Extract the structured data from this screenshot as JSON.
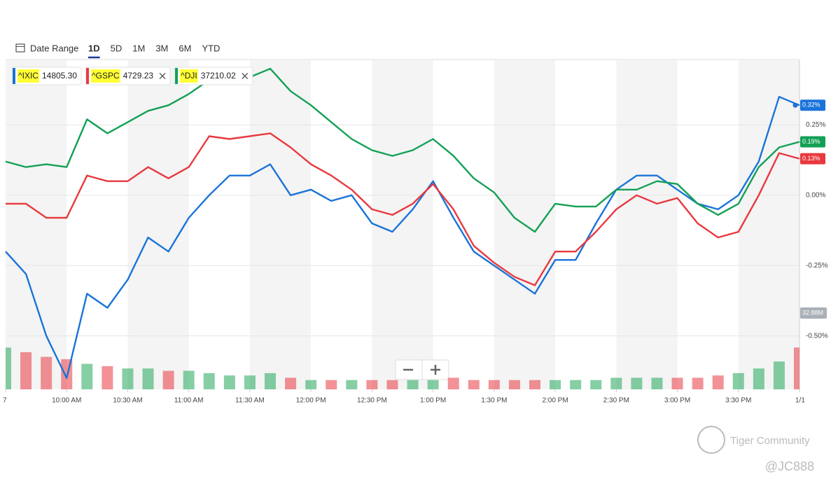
{
  "range_bar": {
    "label": "Date Range",
    "options": [
      "1D",
      "5D",
      "1M",
      "3M",
      "6M",
      "YTD"
    ],
    "active": "1D"
  },
  "watermark": {
    "brand": "Tiger Community",
    "user": "@JC888"
  },
  "chart_data": {
    "type": "line",
    "x": [
      "9:30",
      "9:40",
      "9:50",
      "10:00",
      "10:10",
      "10:20",
      "10:30",
      "10:40",
      "10:50",
      "11:00",
      "11:10",
      "11:20",
      "11:30",
      "11:40",
      "11:50",
      "12:00",
      "12:10",
      "12:20",
      "12:30",
      "12:40",
      "12:50",
      "13:00",
      "13:10",
      "13:20",
      "13:30",
      "13:40",
      "13:50",
      "14:00",
      "14:10",
      "14:20",
      "14:30",
      "14:40",
      "14:50",
      "15:00",
      "15:10",
      "15:20",
      "15:30",
      "15:40",
      "15:50",
      "16:00"
    ],
    "xlim": [
      "9:30",
      "16:00"
    ],
    "xticks": [
      {
        "value": "9:30",
        "label": "7"
      },
      {
        "value": "10:00",
        "label": "10:00 AM"
      },
      {
        "value": "10:30",
        "label": "10:30 AM"
      },
      {
        "value": "11:00",
        "label": "11:00 AM"
      },
      {
        "value": "11:30",
        "label": "11:30 AM"
      },
      {
        "value": "12:00",
        "label": "12:00 PM"
      },
      {
        "value": "12:30",
        "label": "12:30 PM"
      },
      {
        "value": "13:00",
        "label": "1:00 PM"
      },
      {
        "value": "13:30",
        "label": "1:30 PM"
      },
      {
        "value": "14:00",
        "label": "2:00 PM"
      },
      {
        "value": "14:30",
        "label": "2:30 PM"
      },
      {
        "value": "15:00",
        "label": "3:00 PM"
      },
      {
        "value": "15:30",
        "label": "3:30 PM"
      },
      {
        "value": "16:00",
        "label": "1/1"
      }
    ],
    "ylim": [
      -0.69,
      0.48
    ],
    "yticks": [
      {
        "value": 0.25,
        "label": "0.25%"
      },
      {
        "value": 0,
        "label": "0.00%"
      },
      {
        "value": -0.25,
        "label": "-0.25%"
      },
      {
        "value": -0.5,
        "label": "-0.50%"
      }
    ],
    "grid": true,
    "series": [
      {
        "name": "^IXIC",
        "quote": {
          "value": 14805.3,
          "label": "14805.30"
        },
        "color": "#1a73d9",
        "values": [
          -0.2,
          -0.28,
          -0.5,
          -0.65,
          -0.35,
          -0.4,
          -0.3,
          -0.15,
          -0.2,
          -0.08,
          0.0,
          0.07,
          0.07,
          0.11,
          0.0,
          0.02,
          -0.02,
          0.0,
          -0.1,
          -0.13,
          -0.05,
          0.05,
          -0.08,
          -0.2,
          -0.25,
          -0.3,
          -0.35,
          -0.23,
          -0.23,
          -0.1,
          0.02,
          0.07,
          0.07,
          0.02,
          -0.03,
          -0.05,
          0.0,
          0.12,
          0.35,
          0.32
        ],
        "value_labels": [
          null,
          null,
          null,
          null,
          null,
          null,
          null,
          null,
          null,
          null,
          null,
          null,
          null,
          null,
          null,
          null,
          null,
          null,
          null,
          null,
          null,
          null,
          null,
          null,
          null,
          null,
          null,
          null,
          null,
          null,
          null,
          null,
          null,
          null,
          null,
          null,
          null,
          null,
          null,
          "0.32%"
        ]
      },
      {
        "name": "^GSPC",
        "quote": {
          "value": 4729.23,
          "label": "4729.23"
        },
        "color": "#e8393f",
        "values": [
          -0.03,
          -0.03,
          -0.08,
          -0.08,
          0.07,
          0.05,
          0.05,
          0.1,
          0.06,
          0.1,
          0.21,
          0.2,
          0.21,
          0.22,
          0.17,
          0.11,
          0.07,
          0.02,
          -0.05,
          -0.07,
          -0.03,
          0.04,
          -0.05,
          -0.18,
          -0.24,
          -0.29,
          -0.32,
          -0.2,
          -0.2,
          -0.13,
          -0.05,
          0.0,
          -0.03,
          -0.01,
          -0.1,
          -0.15,
          -0.13,
          0.0,
          0.15,
          0.13
        ],
        "value_labels": [
          null,
          null,
          null,
          null,
          null,
          null,
          null,
          null,
          null,
          null,
          null,
          null,
          null,
          null,
          null,
          null,
          null,
          null,
          null,
          null,
          null,
          null,
          null,
          null,
          null,
          null,
          null,
          null,
          null,
          null,
          null,
          null,
          null,
          null,
          null,
          null,
          null,
          null,
          null,
          "0.13%"
        ]
      },
      {
        "name": "^DJI",
        "quote": {
          "value": 37210.02,
          "label": "37210.02"
        },
        "color": "#13a055",
        "values": [
          0.12,
          0.1,
          0.11,
          0.1,
          0.27,
          0.22,
          0.26,
          0.3,
          0.32,
          0.36,
          0.41,
          0.4,
          0.42,
          0.45,
          0.37,
          0.32,
          0.26,
          0.2,
          0.16,
          0.14,
          0.16,
          0.2,
          0.14,
          0.06,
          0.01,
          -0.08,
          -0.13,
          -0.03,
          -0.04,
          -0.04,
          0.02,
          0.02,
          0.05,
          0.04,
          -0.03,
          -0.07,
          -0.03,
          0.1,
          0.17,
          0.19
        ],
        "value_labels": [
          null,
          null,
          null,
          null,
          null,
          null,
          null,
          null,
          null,
          null,
          null,
          null,
          null,
          null,
          null,
          null,
          null,
          null,
          null,
          null,
          null,
          null,
          null,
          null,
          null,
          null,
          null,
          null,
          null,
          null,
          null,
          null,
          null,
          null,
          null,
          null,
          null,
          null,
          null,
          "0.19%"
        ]
      }
    ],
    "volume": {
      "values": [
        18,
        16,
        14,
        13,
        11,
        10,
        9,
        9,
        8,
        8,
        7,
        6,
        6,
        7,
        5,
        4,
        4,
        4,
        4,
        4,
        4,
        4,
        5,
        4,
        4,
        4,
        4,
        4,
        4,
        4,
        5,
        5,
        5,
        5,
        5,
        6,
        7,
        9,
        12,
        18
      ],
      "vlim": [
        0,
        32.88
      ],
      "marker": {
        "value": 32.88,
        "label": "32.88M"
      },
      "up_color": "#22a65a",
      "down_color": "#e8393f"
    }
  }
}
